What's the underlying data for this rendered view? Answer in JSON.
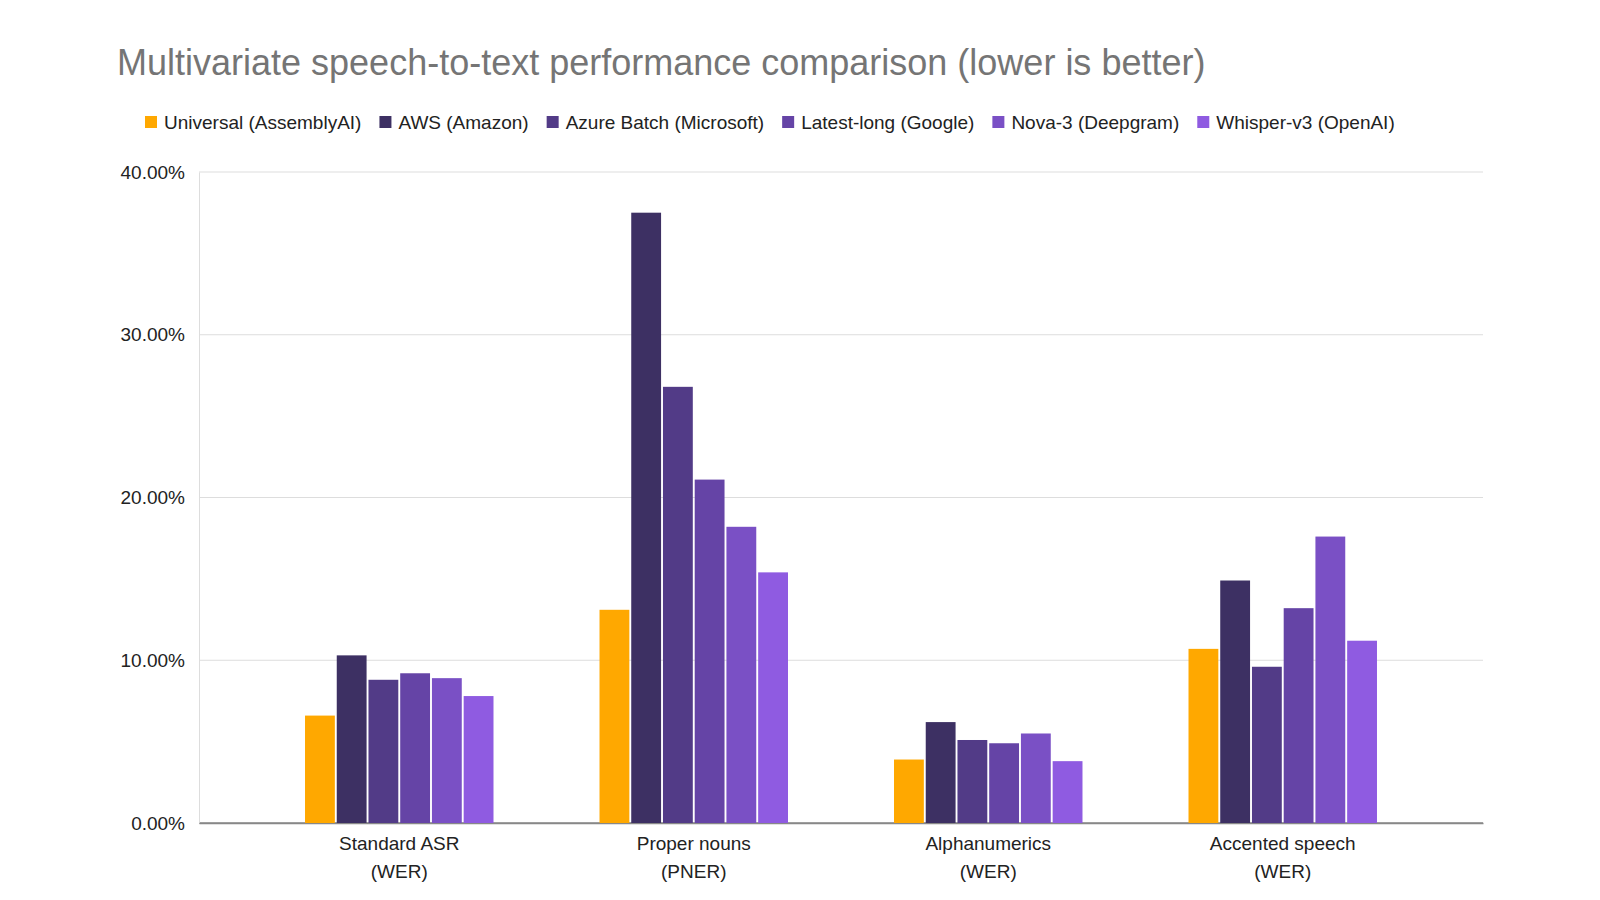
{
  "chart_data": {
    "type": "bar",
    "title": "Multivariate speech-to-text performance comparison (lower is better)",
    "categories": [
      "Standard ASR\n(WER)",
      "Proper nouns\n(PNER)",
      "Alphanumerics\n(WER)",
      "Accented speech\n(WER)"
    ],
    "series": [
      {
        "name": "Universal (AssemblyAI)",
        "color": "#ffa800",
        "values": [
          6.6,
          13.1,
          3.9,
          10.7
        ]
      },
      {
        "name": "AWS (Amazon)",
        "color": "#3d3063",
        "values": [
          10.3,
          37.5,
          6.2,
          14.9
        ]
      },
      {
        "name": "Azure Batch (Microsoft)",
        "color": "#523b87",
        "values": [
          8.8,
          26.8,
          5.1,
          9.6
        ]
      },
      {
        "name": "Latest-long (Google)",
        "color": "#6544a6",
        "values": [
          9.2,
          21.1,
          4.9,
          13.2
        ]
      },
      {
        "name": "Nova-3 (Deepgram)",
        "color": "#7a50c5",
        "values": [
          8.9,
          18.2,
          5.5,
          17.6
        ]
      },
      {
        "name": "Whisper-v3 (OpenAI)",
        "color": "#8f5be1",
        "values": [
          7.8,
          15.4,
          3.8,
          11.2
        ]
      }
    ],
    "ylim": [
      0,
      40
    ],
    "yticks": [
      {
        "value": 0,
        "label": "0.00%"
      },
      {
        "value": 10,
        "label": "10.00%"
      },
      {
        "value": 20,
        "label": "20.00%"
      },
      {
        "value": 30,
        "label": "30.00%"
      },
      {
        "value": 40,
        "label": "40.00%"
      }
    ],
    "grid": true,
    "legend": "top"
  }
}
